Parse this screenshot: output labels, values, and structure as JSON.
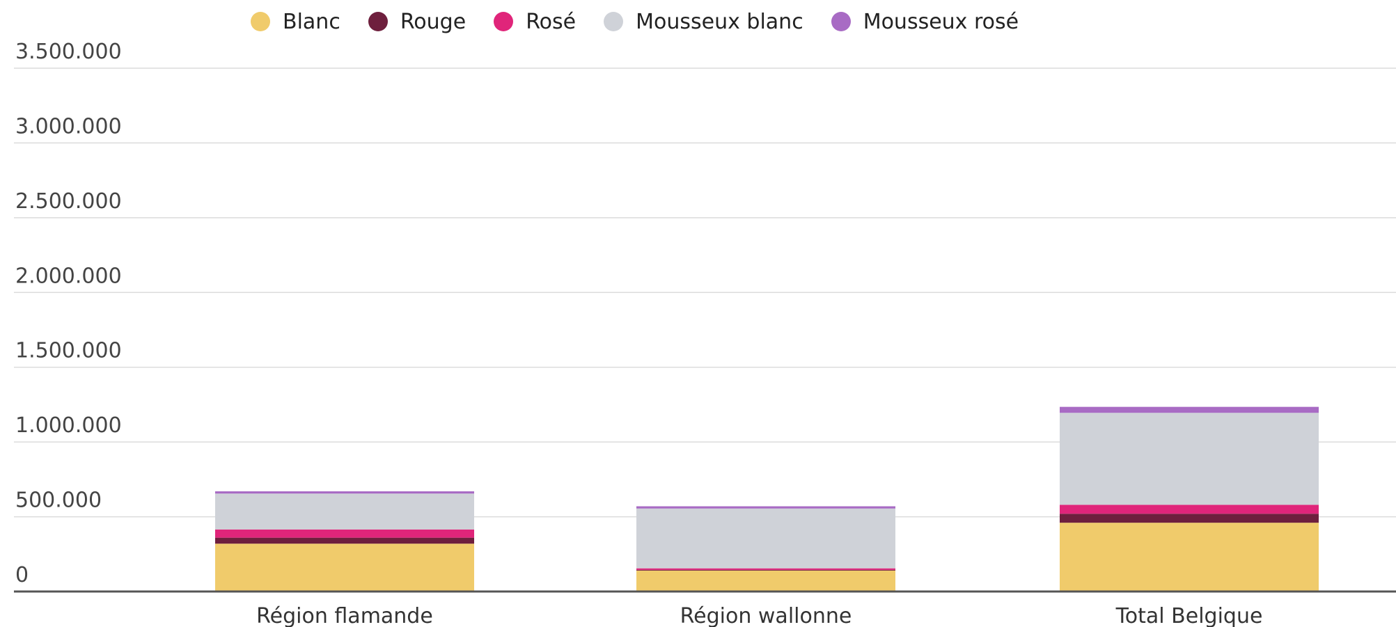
{
  "chart_data": {
    "type": "bar",
    "stacked": true,
    "categories": [
      "Région flamande",
      "Région wallonne",
      "Total Belgique"
    ],
    "series": [
      {
        "name": "Blanc",
        "color": "#f0cb6b",
        "values": [
          320000,
          140000,
          460000
        ]
      },
      {
        "name": "Rouge",
        "color": "#6e1f3d",
        "values": [
          40000,
          5000,
          60000
        ]
      },
      {
        "name": "Rosé",
        "color": "#e0257a",
        "values": [
          55000,
          10000,
          60000
        ]
      },
      {
        "name": "Mousseux blanc",
        "color": "#cfd2d8",
        "values": [
          240000,
          400000,
          615000
        ]
      },
      {
        "name": "Mousseux rosé",
        "color": "#a86bc4",
        "values": [
          15000,
          15000,
          40000
        ]
      }
    ],
    "ylim": [
      0,
      3500000
    ],
    "yticks": [
      0,
      500000,
      1000000,
      1500000,
      2000000,
      2500000,
      3000000,
      3500000
    ],
    "ytick_labels": [
      "0",
      "500.000",
      "1.000.000",
      "1.500.000",
      "2.000.000",
      "2.500.000",
      "3.000.000",
      "3.500.000"
    ],
    "legend_position": "top",
    "grid": true
  }
}
